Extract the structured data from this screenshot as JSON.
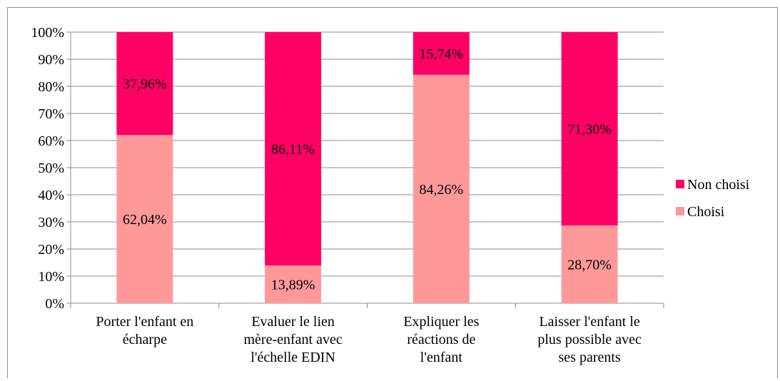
{
  "chart_data": {
    "type": "bar",
    "stacked": true,
    "percent_stacked": true,
    "categories": [
      [
        "Porter l'enfant en",
        "écharpe"
      ],
      [
        "Evaluer le lien",
        "mère-enfant avec",
        "l'échelle EDIN"
      ],
      [
        "Expliquer les",
        "réactions de",
        "l'enfant"
      ],
      [
        "Laisser l'enfant le",
        "plus possible avec",
        "ses parents"
      ]
    ],
    "series": [
      {
        "name": "Choisi",
        "color": "#ff9999",
        "values": [
          62.04,
          13.89,
          84.26,
          28.7
        ],
        "labels": [
          "62,04%",
          "13,89%",
          "84,26%",
          "28,70%"
        ]
      },
      {
        "name": "Non choisi",
        "color": "#ff0066",
        "values": [
          37.96,
          86.11,
          15.74,
          71.3
        ],
        "labels": [
          "37,96%",
          "86,11%",
          "15,74%",
          "71,30%"
        ]
      }
    ],
    "ylim": [
      0,
      100
    ],
    "yticks": [
      "0%",
      "10%",
      "20%",
      "30%",
      "40%",
      "50%",
      "60%",
      "70%",
      "80%",
      "90%",
      "100%"
    ],
    "grid": true,
    "legend_position": "right",
    "legend": [
      {
        "name": "Non choisi",
        "color": "#ff0066"
      },
      {
        "name": "Choisi",
        "color": "#ff9999"
      }
    ]
  }
}
